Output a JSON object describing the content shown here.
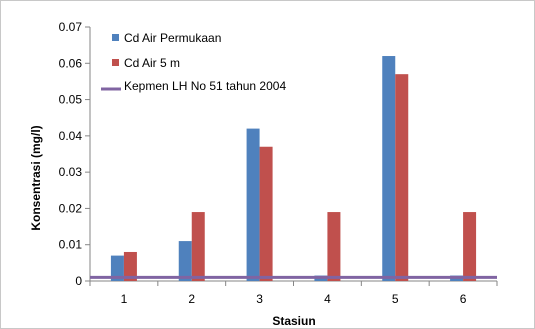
{
  "chart_data": {
    "type": "bar",
    "categories": [
      "1",
      "2",
      "3",
      "4",
      "5",
      "6"
    ],
    "series": [
      {
        "name": "Cd Air Permukaan",
        "color": "#4F81BD",
        "values": [
          0.007,
          0.011,
          0.042,
          0.0015,
          0.062,
          0.0015
        ]
      },
      {
        "name": "Cd Air 5 m",
        "color": "#C0504D",
        "values": [
          0.008,
          0.019,
          0.037,
          0.019,
          0.057,
          0.019
        ]
      }
    ],
    "reference_line": {
      "name": "Kepmen LH No 51 tahun 2004",
      "color": "#8064A2",
      "value": 0.001
    },
    "xlabel": "Stasiun",
    "ylabel": "Konsentrasi (mg/l)",
    "ylim": [
      0,
      0.07
    ],
    "yticks": [
      "0",
      "0.01",
      "0.02",
      "0.03",
      "0.04",
      "0.05",
      "0.06",
      "0.07"
    ],
    "grid": false,
    "legend_position": "top-left"
  }
}
